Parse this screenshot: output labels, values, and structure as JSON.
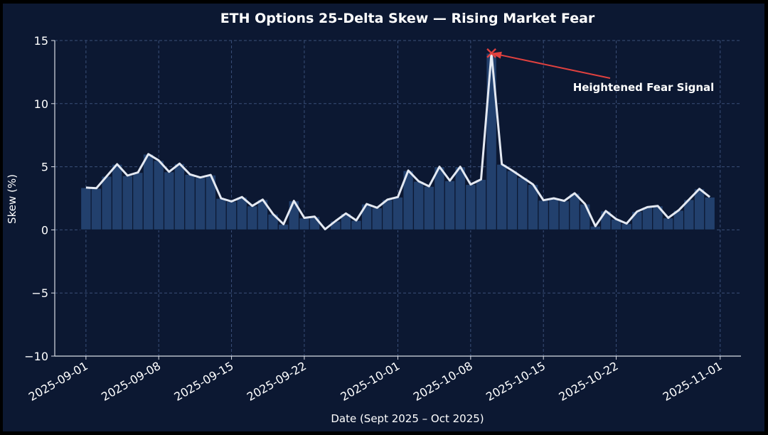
{
  "chart_data": {
    "type": "bar+line",
    "title": "ETH Options 25-Delta Skew — Rising Market Fear",
    "xlabel": "Date (Sept 2025 – Oct 2025)",
    "ylabel": "Skew (%)",
    "ylim": [
      -10,
      15
    ],
    "yticks": [
      15,
      10,
      5,
      0,
      -5,
      -10
    ],
    "ytick_labels": [
      "15",
      "10",
      "5",
      "0",
      "−5",
      "−10"
    ],
    "xticks": [
      "2025-09-01",
      "2025-09-08",
      "2025-09-15",
      "2025-09-22",
      "2025-10-01",
      "2025-10-08",
      "2025-10-15",
      "2025-10-22",
      "2025-11-01"
    ],
    "grid": true,
    "x": [
      "2025-09-01",
      "2025-09-02",
      "2025-09-03",
      "2025-09-04",
      "2025-09-05",
      "2025-09-06",
      "2025-09-07",
      "2025-09-08",
      "2025-09-09",
      "2025-09-10",
      "2025-09-11",
      "2025-09-12",
      "2025-09-13",
      "2025-09-14",
      "2025-09-15",
      "2025-09-16",
      "2025-09-17",
      "2025-09-18",
      "2025-09-19",
      "2025-09-20",
      "2025-09-21",
      "2025-09-22",
      "2025-09-23",
      "2025-09-24",
      "2025-09-25",
      "2025-09-26",
      "2025-09-27",
      "2025-09-28",
      "2025-09-29",
      "2025-09-30",
      "2025-10-01",
      "2025-10-02",
      "2025-10-03",
      "2025-10-04",
      "2025-10-05",
      "2025-10-06",
      "2025-10-07",
      "2025-10-08",
      "2025-10-09",
      "2025-10-10",
      "2025-10-11",
      "2025-10-12",
      "2025-10-13",
      "2025-10-14",
      "2025-10-15",
      "2025-10-16",
      "2025-10-17",
      "2025-10-18",
      "2025-10-19",
      "2025-10-20",
      "2025-10-21",
      "2025-10-22",
      "2025-10-23",
      "2025-10-24",
      "2025-10-25",
      "2025-10-26",
      "2025-10-27",
      "2025-10-28",
      "2025-10-29",
      "2025-10-30",
      "2025-10-31"
    ],
    "values": [
      3.35,
      3.3,
      4.25,
      5.2,
      4.3,
      4.55,
      6.0,
      5.5,
      4.6,
      5.25,
      4.4,
      4.15,
      4.35,
      2.5,
      2.25,
      2.6,
      1.9,
      2.4,
      1.25,
      0.45,
      2.3,
      0.95,
      1.05,
      0.05,
      0.7,
      1.3,
      0.75,
      2.05,
      1.75,
      2.4,
      2.6,
      4.7,
      3.85,
      3.45,
      5.0,
      3.9,
      5.0,
      3.6,
      4.0,
      14.0,
      5.2,
      4.7,
      4.15,
      3.6,
      2.35,
      2.5,
      2.3,
      2.9,
      2.05,
      0.3,
      1.5,
      0.85,
      0.5,
      1.45,
      1.8,
      1.9,
      0.95,
      1.55,
      2.4,
      3.25,
      2.6
    ],
    "annotation": {
      "text": "Heightened Fear Signal",
      "x": "2025-10-10",
      "y": 14.0
    },
    "colors": {
      "background": "#0c1832",
      "bar_fill": "#22406d",
      "bar_edge": "#0c1832",
      "line": "#e4e9f2",
      "grid": "#3a4f78",
      "annotation": "#e0413f",
      "text": "#ffffff",
      "axis": "#d9dde5"
    }
  }
}
